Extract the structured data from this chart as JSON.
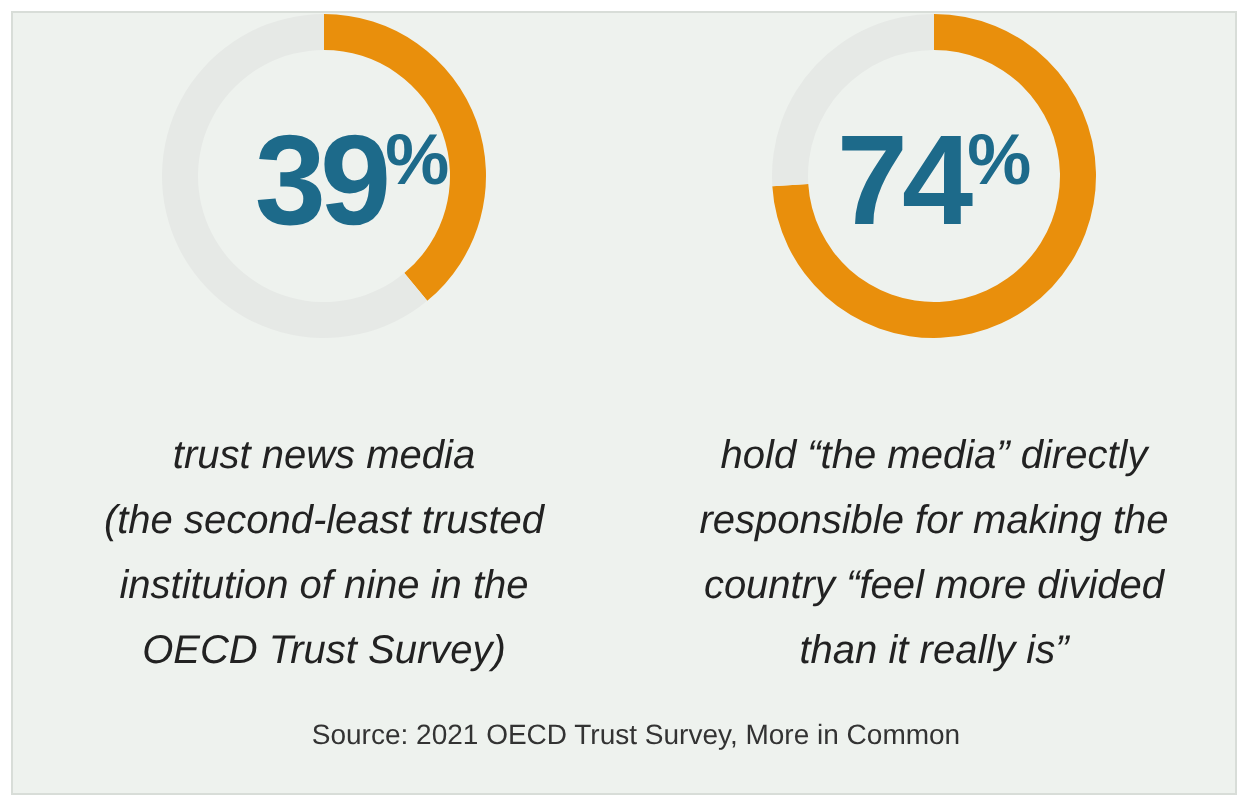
{
  "chart_data": [
    {
      "type": "donut",
      "categories": [
        null,
        null
      ],
      "values": [
        39,
        61
      ],
      "colors": [
        "#e98f0c",
        "#e6e9e6"
      ],
      "value_labels": [
        "39%",
        null
      ],
      "annotations": [
        "trust news media\n(the second-least trusted\ninstitution of nine in the\nOECD Trust Survey)"
      ]
    },
    {
      "type": "donut",
      "categories": [
        null,
        null
      ],
      "values": [
        74,
        26
      ],
      "colors": [
        "#e98f0c",
        "#e6e9e6"
      ],
      "value_labels": [
        "74%",
        null
      ],
      "annotations": [
        "hold “the media” directly\nresponsible for making the\ncountry “feel more divided\nthan it really is”"
      ]
    },
    {
      "type": "other",
      "annotations": [
        "Source: 2021 OECD Trust Survey, More in Common"
      ]
    }
  ]
}
